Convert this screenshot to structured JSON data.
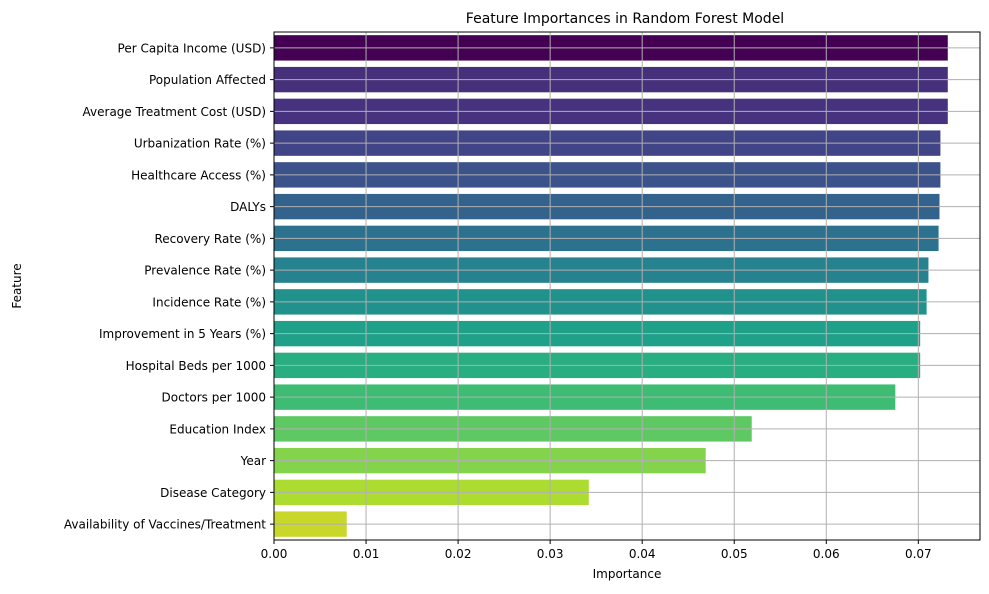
{
  "chart_data": {
    "type": "bar",
    "orientation": "horizontal",
    "title": "Feature Importances in Random Forest Model",
    "xlabel": "Importance",
    "ylabel": "Feature",
    "xlim": [
      0,
      0.0767
    ],
    "xticks": [
      "0.00",
      "0.01",
      "0.02",
      "0.03",
      "0.04",
      "0.05",
      "0.06",
      "0.07"
    ],
    "grid": true,
    "palette": "viridis",
    "categories": [
      "Per Capita Income (USD)",
      "Population Affected",
      "Average Treatment Cost (USD)",
      "Urbanization Rate (%)",
      "Healthcare Access (%)",
      "DALYs",
      "Recovery Rate (%)",
      "Prevalence Rate (%)",
      "Incidence Rate (%)",
      "Improvement in 5 Years (%)",
      "Hospital Beds per 1000",
      "Doctors per 1000",
      "Education Index",
      "Year",
      "Disease Category",
      "Availability of Vaccines/Treatment"
    ],
    "values": [
      0.0732,
      0.0732,
      0.0732,
      0.0724,
      0.0724,
      0.0723,
      0.0722,
      0.0711,
      0.0709,
      0.0702,
      0.0702,
      0.0675,
      0.0519,
      0.0469,
      0.0342,
      0.0079
    ],
    "colors": [
      "#440154",
      "#46307c",
      "#46327e",
      "#414487",
      "#3b528b",
      "#33638d",
      "#2c728e",
      "#26828e",
      "#21918c",
      "#1fa088",
      "#28ae80",
      "#3fbc73",
      "#5ec962",
      "#84d44b",
      "#addc30",
      "#c8d72a"
    ]
  }
}
